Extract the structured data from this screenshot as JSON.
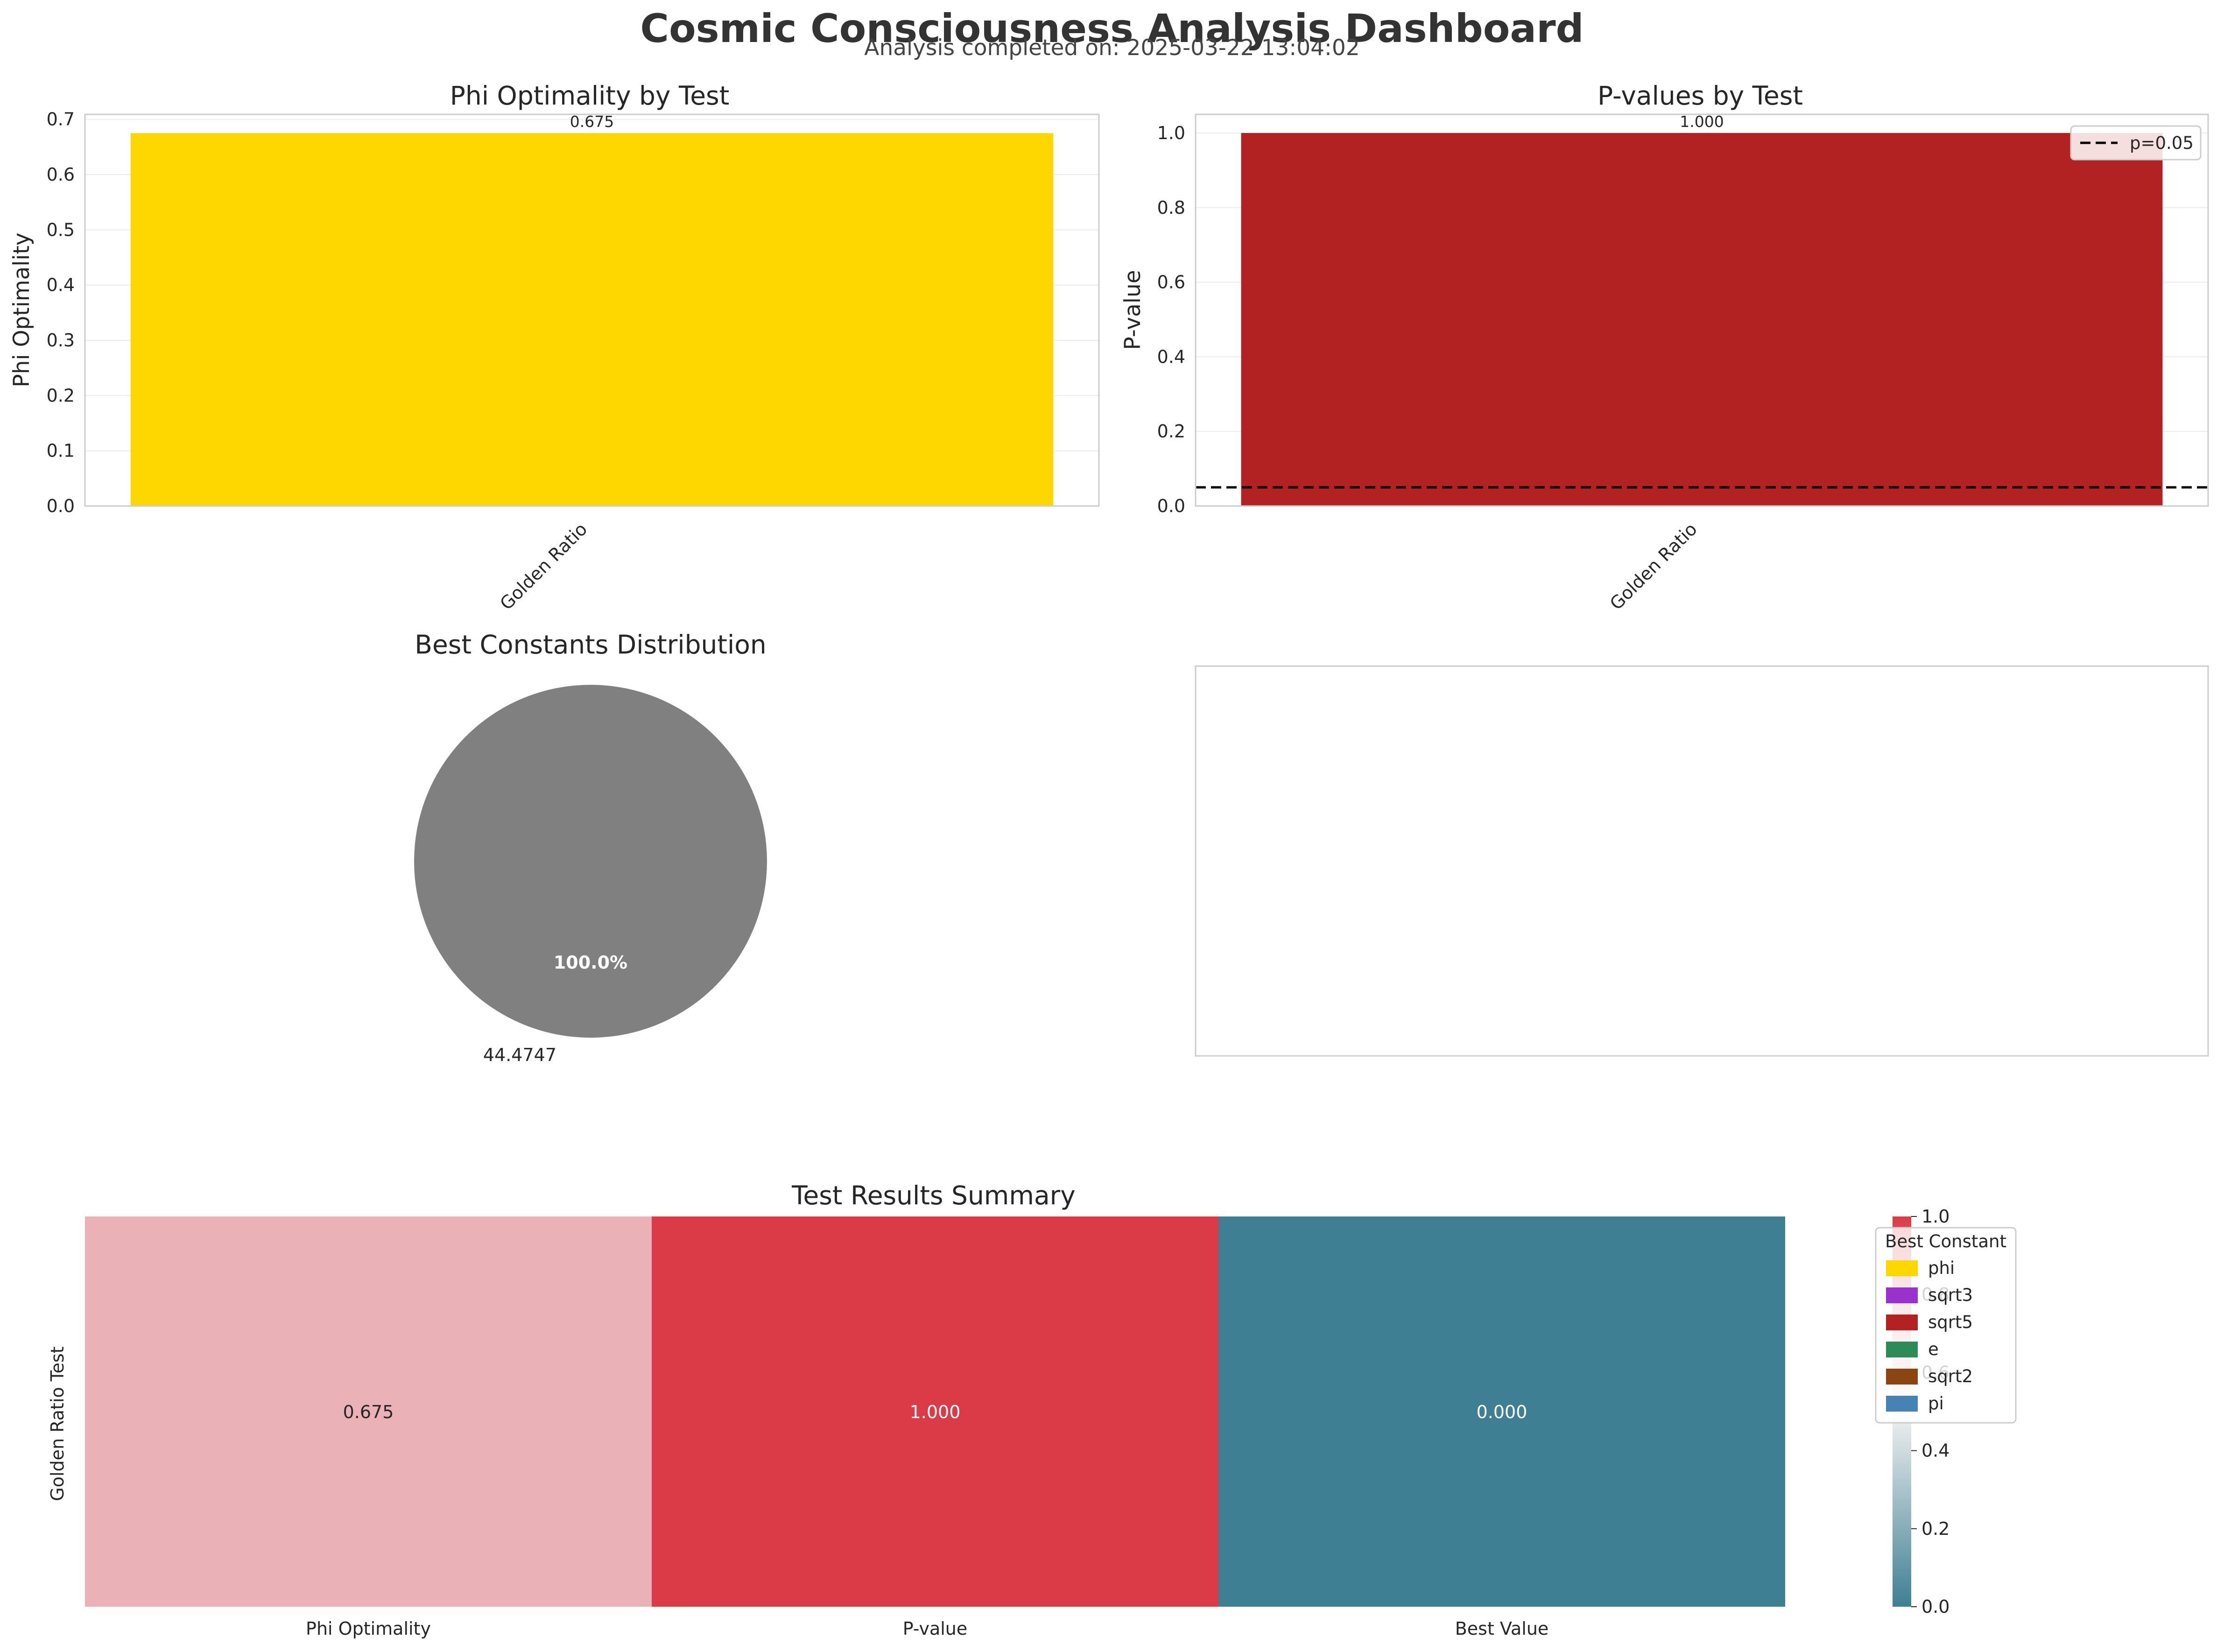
{
  "header": {
    "title": "Cosmic Consciousness Analysis Dashboard",
    "subtitle": "Analysis completed on: 2025-03-22 13:04:02"
  },
  "colors": {
    "phi": "#FFD700",
    "sqrt3": "#9932CC",
    "sqrt5": "#B22222",
    "e": "#2E8B57",
    "sqrt2": "#8B4513",
    "pi": "#4682B4",
    "pie_gray": "#808080",
    "heatmap_low": "#3F7F93",
    "heatmap_mid": "#F2F2F2",
    "heatmap_high": "#DA3B46"
  },
  "chart_data": [
    {
      "id": "phi-optimality",
      "type": "bar",
      "title": "Phi Optimality by Test",
      "xlabel": "",
      "ylabel": "Phi Optimality",
      "categories": [
        "Golden Ratio"
      ],
      "values": [
        0.675
      ],
      "value_labels": [
        "0.675"
      ],
      "bar_colors": [
        "#FFD700"
      ],
      "ylim": [
        0,
        0.709
      ],
      "yticks": [
        0.0,
        0.1,
        0.2,
        0.3,
        0.4,
        0.5,
        0.6,
        0.7
      ],
      "ytick_labels": [
        "0.0",
        "0.1",
        "0.2",
        "0.3",
        "0.4",
        "0.5",
        "0.6",
        "0.7"
      ],
      "grid": true
    },
    {
      "id": "p-values",
      "type": "bar",
      "title": "P-values by Test",
      "xlabel": "",
      "ylabel": "P-value",
      "categories": [
        "Golden Ratio"
      ],
      "values": [
        1.0
      ],
      "value_labels": [
        "1.000"
      ],
      "bar_colors": [
        "#B22222"
      ],
      "ylim": [
        0,
        1.05
      ],
      "yticks": [
        0.0,
        0.2,
        0.4,
        0.6,
        0.8,
        1.0
      ],
      "ytick_labels": [
        "0.0",
        "0.2",
        "0.4",
        "0.6",
        "0.8",
        "1.0"
      ],
      "reference_line": {
        "y": 0.05,
        "label": "p=0.05"
      },
      "legend": "top-right",
      "grid": true
    },
    {
      "id": "best-constants",
      "type": "pie",
      "title": "Best Constants Distribution",
      "labels": [
        "44.4747"
      ],
      "values": [
        1
      ],
      "percent_labels": [
        "100.0%"
      ],
      "slice_colors": [
        "#808080"
      ]
    },
    {
      "id": "empty-panel",
      "type": "bar",
      "title": "",
      "categories": [],
      "values": []
    },
    {
      "id": "summary-heatmap",
      "type": "heatmap",
      "title": "Test Results Summary",
      "rows": [
        "Golden Ratio Test"
      ],
      "columns": [
        "Phi Optimality",
        "P-value",
        "Best Value"
      ],
      "values": [
        [
          0.675,
          1.0,
          0.0
        ]
      ],
      "cell_labels": [
        [
          "0.675",
          "1.000",
          "0.000"
        ]
      ],
      "vmin": 0,
      "vmax": 1,
      "colorbar_ticks": [
        0.0,
        0.2,
        0.4,
        0.6,
        0.8,
        1.0
      ],
      "colorbar_tick_labels": [
        "0.0",
        "0.2",
        "0.4",
        "0.6",
        "0.8",
        "1.0"
      ],
      "legend": {
        "title": "Best Constant",
        "placement": "right",
        "entries": [
          {
            "label": "phi",
            "color": "#FFD700"
          },
          {
            "label": "sqrt3",
            "color": "#9932CC"
          },
          {
            "label": "sqrt5",
            "color": "#B22222"
          },
          {
            "label": "e",
            "color": "#2E8B57"
          },
          {
            "label": "sqrt2",
            "color": "#8B4513"
          },
          {
            "label": "pi",
            "color": "#4682B4"
          }
        ]
      }
    }
  ]
}
